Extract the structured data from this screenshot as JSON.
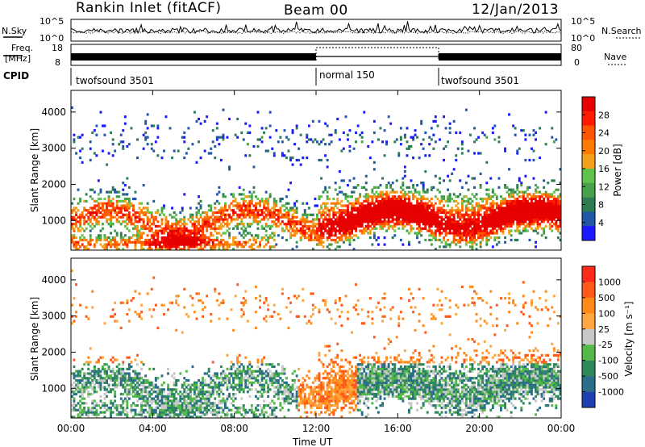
{
  "header": {
    "site": "Rankin Inlet (fitACF)",
    "beam": "Beam 00",
    "date": "12/Jan/2013"
  },
  "noise_panel": {
    "left_label": "N.Sky",
    "right_label": "N.Search",
    "left_ticks": [
      "10^5",
      "10^0"
    ],
    "right_ticks": [
      "10^5",
      "10^0"
    ]
  },
  "freq_panel": {
    "left_label": "Freq.",
    "left_unit": "[MHz]",
    "right_label": "Nave",
    "left_ticks": [
      "18",
      "8"
    ],
    "right_ticks": [
      "80",
      "0"
    ]
  },
  "cpid": {
    "label": "CPID",
    "segments": [
      {
        "name": "twofsound 3501",
        "start_hour": 0,
        "end_hour": 12
      },
      {
        "name": "normal 150",
        "start_hour": 12,
        "end_hour": 18
      },
      {
        "name": "twofsound 3501",
        "start_hour": 18,
        "end_hour": 24
      }
    ]
  },
  "time_axis": {
    "label": "Time UT",
    "ticks": [
      "00:00",
      "04:00",
      "08:00",
      "12:00",
      "16:00",
      "20:00",
      "00:00"
    ]
  },
  "chart_data": [
    {
      "type": "heatmap",
      "name": "power",
      "ylabel": "Slant Range [km]",
      "xrange_hours": [
        0,
        24
      ],
      "ylim": [
        180,
        4600
      ],
      "yticks": [
        1000,
        2000,
        3000,
        4000
      ],
      "colorbar": {
        "label": "Power [dB]",
        "ticks": [
          "28",
          "24",
          "20",
          "16",
          "12",
          "8",
          "4"
        ],
        "colors": [
          "#1a1aff",
          "#2257a8",
          "#2e7d52",
          "#47a04a",
          "#5fc24a",
          "#f2a21a",
          "#ff7a00",
          "#ff5500",
          "#ff1a00",
          "#e60000"
        ]
      }
    },
    {
      "type": "heatmap",
      "name": "velocity",
      "ylabel": "Slant Range [km]",
      "xrange_hours": [
        0,
        24
      ],
      "ylim": [
        180,
        4600
      ],
      "yticks": [
        1000,
        2000,
        3000,
        4000
      ],
      "colorbar": {
        "label": "Velocity [m s⁻¹]",
        "ticks": [
          "1000",
          "500",
          "100",
          "25",
          "-25",
          "-100",
          "-500",
          "-1000"
        ],
        "colors": [
          "#1f3fb0",
          "#2a6e8a",
          "#2e8a5a",
          "#55b84a",
          "#c8c8c8",
          "#ffa640",
          "#ff8a1a",
          "#ff5a1a",
          "#ff2a1a"
        ]
      }
    }
  ]
}
